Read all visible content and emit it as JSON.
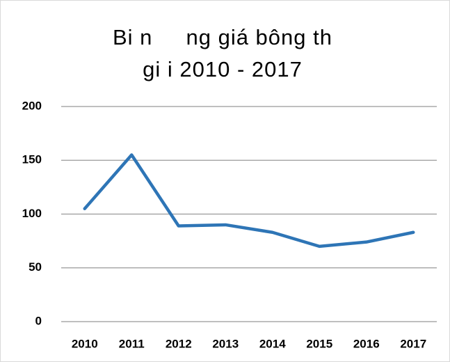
{
  "chart_data": {
    "type": "line",
    "title": [
      "Bi n     ng giá bông th",
      "gi i 2010 - 2017"
    ],
    "categories": [
      "2010",
      "2011",
      "2012",
      "2013",
      "2014",
      "2015",
      "2016",
      "2017"
    ],
    "values": [
      105,
      155,
      89,
      90,
      83,
      70,
      74,
      83
    ],
    "color": "#2e75b6",
    "ylim": [
      0,
      200
    ],
    "yticks": [
      0,
      50,
      100,
      150,
      200
    ],
    "grid": true
  }
}
